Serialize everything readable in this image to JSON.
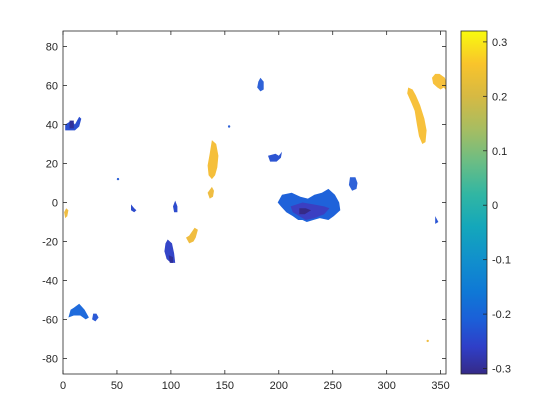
{
  "chart_data": {
    "type": "heatmap",
    "title": "",
    "xlabel": "",
    "ylabel": "",
    "xlim": [
      0,
      355
    ],
    "ylim": [
      -88,
      88
    ],
    "x_ticks": [
      0,
      50,
      100,
      150,
      200,
      250,
      300,
      350
    ],
    "y_ticks": [
      80,
      60,
      40,
      20,
      0,
      -20,
      -40,
      -60,
      -80
    ],
    "grid": false,
    "colormap": "parula",
    "colorbar": {
      "position": "right",
      "clim": [
        -0.31,
        0.32
      ],
      "ticks": [
        0.3,
        0.2,
        0.1,
        0,
        -0.1,
        -0.2,
        -0.3
      ],
      "stops": [
        {
          "v": -0.31,
          "color": "#352a87"
        },
        {
          "v": -0.26,
          "color": "#2f3fc8"
        },
        {
          "v": -0.21,
          "color": "#1b5fd8"
        },
        {
          "v": -0.16,
          "color": "#0f78d6"
        },
        {
          "v": -0.1,
          "color": "#1190cc"
        },
        {
          "v": -0.04,
          "color": "#14a7bb"
        },
        {
          "v": 0.02,
          "color": "#31b6a3"
        },
        {
          "v": 0.08,
          "color": "#6bbd84"
        },
        {
          "v": 0.14,
          "color": "#a7bd61"
        },
        {
          "v": 0.2,
          "color": "#d6b943"
        },
        {
          "v": 0.26,
          "color": "#f9c42b"
        },
        {
          "v": 0.32,
          "color": "#f9fb0e"
        }
      ]
    },
    "regions": [
      {
        "name": "positive-anomaly",
        "value": 0.23,
        "color": "#f7c13c",
        "points": [
          [
            349,
            66
          ],
          [
            354,
            64
          ],
          [
            356,
            60
          ],
          [
            359,
            58
          ],
          [
            356,
            57
          ],
          [
            353,
            59
          ],
          [
            350,
            58
          ],
          [
            347,
            59
          ],
          [
            343,
            61
          ],
          [
            342,
            64
          ],
          [
            345,
            66
          ]
        ]
      },
      {
        "name": "positive-anomaly",
        "value": 0.23,
        "color": "#f7c13c",
        "points": [
          [
            320,
            59
          ],
          [
            324,
            58
          ],
          [
            327,
            55
          ],
          [
            331,
            50
          ],
          [
            335,
            43
          ],
          [
            337,
            37
          ],
          [
            336,
            31
          ],
          [
            333,
            30
          ],
          [
            330,
            34
          ],
          [
            328,
            40
          ],
          [
            326,
            47
          ],
          [
            323,
            51
          ],
          [
            319,
            56
          ]
        ]
      },
      {
        "name": "positive-anomaly",
        "value": 0.22,
        "color": "#f5bf3b",
        "points": [
          [
            138,
            32
          ],
          [
            142,
            30
          ],
          [
            144,
            24
          ],
          [
            143,
            18
          ],
          [
            141,
            14
          ],
          [
            138,
            12
          ],
          [
            135,
            14
          ],
          [
            134,
            19
          ],
          [
            136,
            25
          ]
        ]
      },
      {
        "name": "positive-anomaly",
        "value": 0.2,
        "color": "#efbd42",
        "points": [
          [
            138,
            8
          ],
          [
            140,
            6
          ],
          [
            139,
            3
          ],
          [
            136,
            2
          ],
          [
            134,
            5
          ]
        ]
      },
      {
        "name": "positive-anomaly",
        "value": 0.21,
        "color": "#f0bd40",
        "points": [
          [
            122,
            -13
          ],
          [
            125,
            -14
          ],
          [
            123,
            -18
          ],
          [
            121,
            -20
          ],
          [
            117,
            -21
          ],
          [
            114,
            -18
          ],
          [
            117,
            -17
          ]
        ]
      },
      {
        "name": "positive-anomaly",
        "value": 0.2,
        "color": "#efbd42",
        "points": [
          [
            3,
            -3
          ],
          [
            5,
            -4
          ],
          [
            4,
            -7
          ],
          [
            2,
            -8
          ],
          [
            1,
            -5
          ]
        ]
      },
      {
        "name": "negative-anomaly",
        "value": -0.2,
        "color": "#2f62d8",
        "points": [
          [
            183,
            64
          ],
          [
            186,
            62
          ],
          [
            186,
            58
          ],
          [
            183,
            57
          ],
          [
            180,
            59
          ],
          [
            181,
            62
          ]
        ]
      },
      {
        "name": "negative-anomaly",
        "value": -0.2,
        "color": "#2f62d8",
        "points": [
          [
            266,
            13
          ],
          [
            271,
            13
          ],
          [
            273,
            10
          ],
          [
            272,
            7
          ],
          [
            268,
            6
          ],
          [
            265,
            9
          ]
        ]
      },
      {
        "name": "negative-anomaly",
        "value": -0.24,
        "color": "#2b4fd0",
        "points": [
          [
            2,
            40
          ],
          [
            8,
            42
          ],
          [
            11,
            40
          ],
          [
            15,
            44
          ],
          [
            17,
            43
          ],
          [
            15,
            39
          ],
          [
            11,
            37
          ],
          [
            6,
            37
          ],
          [
            2,
            37
          ]
        ]
      },
      {
        "name": "negative-anomaly",
        "value": -0.23,
        "color": "#2d55d2",
        "points": [
          [
            190,
            24
          ],
          [
            197,
            25
          ],
          [
            200,
            24
          ],
          [
            203,
            26
          ],
          [
            202,
            23
          ],
          [
            198,
            21
          ],
          [
            192,
            21
          ]
        ]
      },
      {
        "name": "negative-anomaly",
        "value": -0.25,
        "color": "#2d4bcd",
        "points": [
          [
            63,
            -1
          ],
          [
            66,
            -3
          ],
          [
            68,
            -4
          ],
          [
            66,
            -5
          ],
          [
            63,
            -4
          ]
        ]
      },
      {
        "name": "negative-anomaly",
        "value": -0.24,
        "color": "#2d4bcd",
        "points": [
          [
            104,
            1
          ],
          [
            106,
            -2
          ],
          [
            106,
            -5
          ],
          [
            103,
            -5
          ],
          [
            102,
            -2
          ]
        ]
      },
      {
        "name": "negative-anomaly",
        "value": -0.26,
        "color": "#3445c8",
        "points": [
          [
            97,
            -19
          ],
          [
            101,
            -21
          ],
          [
            103,
            -26
          ],
          [
            104,
            -31
          ],
          [
            100,
            -31
          ],
          [
            96,
            -29
          ],
          [
            94,
            -25
          ],
          [
            95,
            -21
          ]
        ]
      },
      {
        "name": "negative-anomaly",
        "value": -0.18,
        "color": "#1f6bdc",
        "points": [
          [
            15,
            -52
          ],
          [
            20,
            -55
          ],
          [
            24,
            -59
          ],
          [
            21,
            -60
          ],
          [
            16,
            -58
          ],
          [
            10,
            -58
          ],
          [
            5,
            -59
          ],
          [
            7,
            -55
          ],
          [
            10,
            -54
          ]
        ]
      },
      {
        "name": "negative-anomaly",
        "value": -0.2,
        "color": "#2b5ad6",
        "points": [
          [
            28,
            -57
          ],
          [
            31,
            -57
          ],
          [
            33,
            -59
          ],
          [
            30,
            -61
          ],
          [
            27,
            -60
          ]
        ]
      },
      {
        "name": "negative-anomaly",
        "value": -0.21,
        "color": "#2a55d4",
        "points": [
          [
            345,
            -7
          ],
          [
            348,
            -10
          ],
          [
            345,
            -11
          ]
        ]
      },
      {
        "name": "negative-anomaly",
        "value": -0.2,
        "color": "#1f62da",
        "points": [
          [
            203,
            4
          ],
          [
            212,
            5
          ],
          [
            220,
            3
          ],
          [
            227,
            2
          ],
          [
            233,
            4
          ],
          [
            240,
            5
          ],
          [
            246,
            7
          ],
          [
            252,
            4
          ],
          [
            256,
            0
          ],
          [
            257,
            -4
          ],
          [
            251,
            -7
          ],
          [
            246,
            -9
          ],
          [
            238,
            -8
          ],
          [
            232,
            -9
          ],
          [
            226,
            -10
          ],
          [
            222,
            -9
          ],
          [
            218,
            -9
          ],
          [
            213,
            -7
          ],
          [
            207,
            -5
          ],
          [
            202,
            -2
          ],
          [
            199,
            0
          ]
        ]
      },
      {
        "name": "negative-anomaly",
        "value": -0.27,
        "color": "#3b3fc2",
        "points": [
          [
            211,
            -2
          ],
          [
            222,
            0
          ],
          [
            232,
            -1
          ],
          [
            242,
            -2
          ],
          [
            247,
            -3
          ],
          [
            242,
            -6
          ],
          [
            233,
            -8
          ],
          [
            225,
            -9
          ],
          [
            219,
            -7
          ],
          [
            213,
            -5
          ]
        ]
      },
      {
        "name": "negative-anomaly",
        "value": -0.31,
        "color": "#352a87",
        "points": [
          [
            219,
            -3
          ],
          [
            225,
            -3
          ],
          [
            230,
            -4
          ],
          [
            224,
            -6
          ],
          [
            219,
            -6
          ]
        ]
      },
      {
        "name": "negative-anomaly",
        "value": -0.31,
        "color": "#2f2f9a",
        "points": [
          [
            6,
            42
          ],
          [
            10,
            42
          ],
          [
            10,
            38
          ],
          [
            6,
            38
          ]
        ]
      },
      {
        "name": "negative-anomaly",
        "value": -0.31,
        "color": "#2f2f9a",
        "points": [
          [
            98,
            -27
          ],
          [
            102,
            -28
          ],
          [
            102,
            -31
          ],
          [
            99,
            -31
          ]
        ]
      }
    ],
    "specks": [
      {
        "name": "negative-anomaly",
        "value": -0.2,
        "color": "#2f62d8",
        "x": 51,
        "y": 12
      },
      {
        "name": "negative-anomaly",
        "value": -0.2,
        "color": "#2f62d8",
        "x": 154,
        "y": 39
      },
      {
        "name": "positive-anomaly",
        "value": 0.2,
        "color": "#efbd42",
        "x": 338,
        "y": -71
      }
    ]
  }
}
